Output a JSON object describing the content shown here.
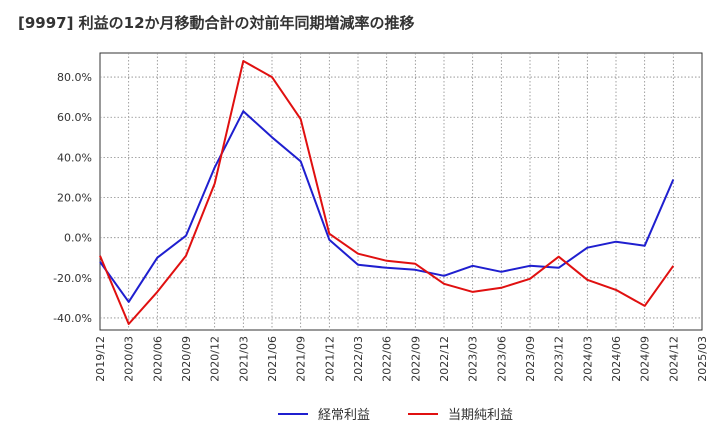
{
  "chart_data": {
    "type": "line",
    "title": "[9997]  利益の12か月移動合計の対前年同期増減率の推移",
    "xlabel": "",
    "ylabel": "",
    "x": [
      "2019/12",
      "2020/03",
      "2020/06",
      "2020/09",
      "2020/12",
      "2021/03",
      "2021/06",
      "2021/09",
      "2021/12",
      "2022/03",
      "2022/06",
      "2022/09",
      "2022/12",
      "2023/03",
      "2023/06",
      "2023/09",
      "2023/12",
      "2024/03",
      "2024/06",
      "2024/09",
      "2024/12",
      "2025/03"
    ],
    "ylim": [
      -46,
      92
    ],
    "yticks": [
      -40,
      -20,
      0,
      20,
      40,
      60,
      80
    ],
    "ytick_labels": [
      "-40.0%",
      "-20.0%",
      "0.0%",
      "20.0%",
      "40.0%",
      "60.0%",
      "80.0%"
    ],
    "grid": true,
    "legend_position": "bottom",
    "series": [
      {
        "name": "経常利益",
        "color": "#1f1fcf",
        "values": [
          -12,
          -32,
          -10,
          1,
          35,
          63,
          50,
          38,
          -1,
          -13.5,
          -15,
          -16,
          -19,
          -14,
          -17,
          -14,
          -15,
          -5,
          -2,
          -4,
          29,
          null
        ]
      },
      {
        "name": "当期純利益",
        "color": "#e01010",
        "values": [
          -9,
          -43,
          -27,
          -9,
          27,
          88,
          80,
          59,
          2,
          -8,
          -11.5,
          -13,
          -23,
          -27,
          -25,
          -20.5,
          -9.5,
          -21,
          -26,
          -34,
          -14,
          null
        ]
      }
    ]
  }
}
